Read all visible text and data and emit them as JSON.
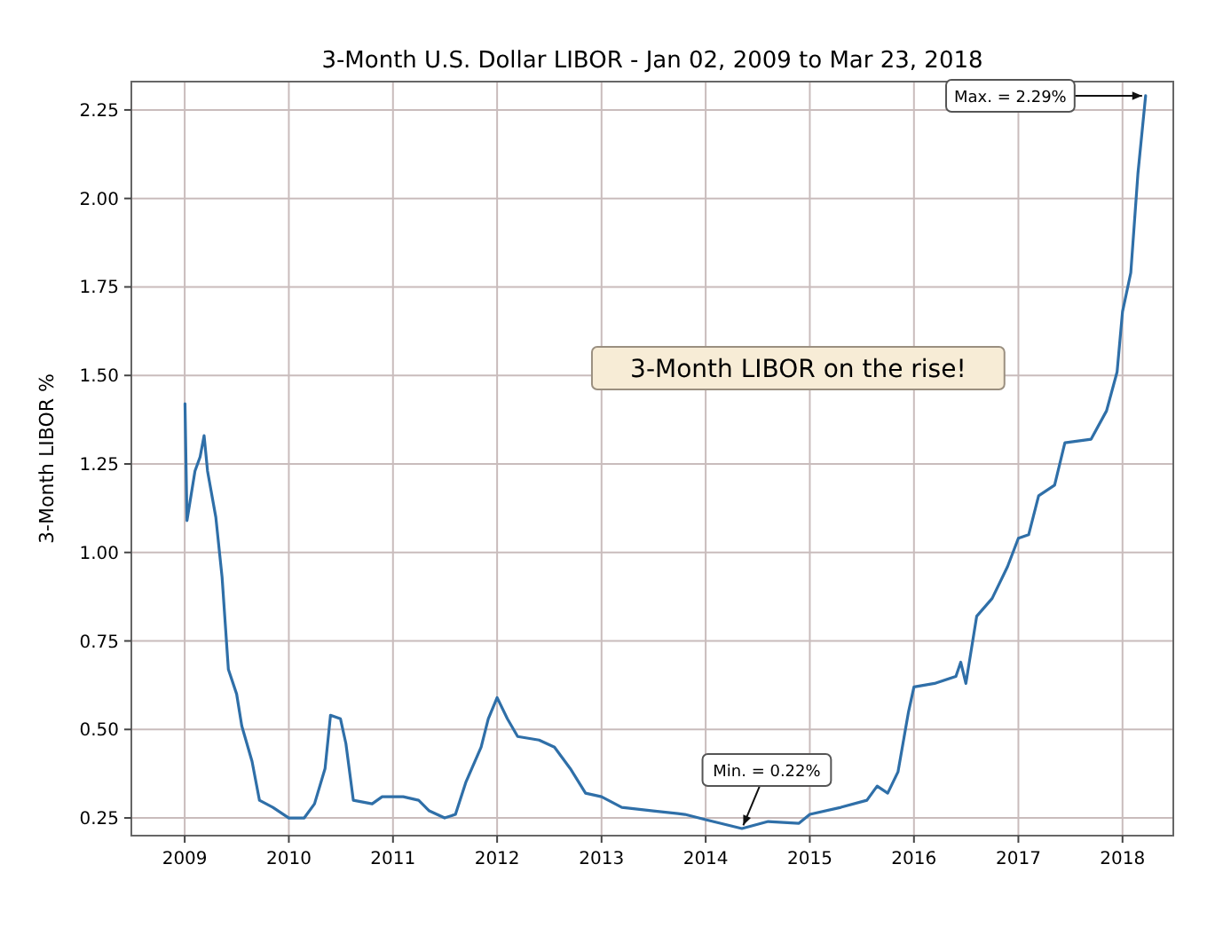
{
  "chart_data": {
    "type": "line",
    "title": "3-Month U.S. Dollar LIBOR - Jan 02, 2009 to Mar 23, 2018",
    "ylabel": "3-Month LIBOR %",
    "x": [
      "2009-01-02",
      "2009-01-09",
      "2009-02-06",
      "2009-02-24",
      "2009-03-10",
      "2009-03-22",
      "2009-04-20",
      "2009-05-12",
      "2009-06-03",
      "2009-07-02",
      "2009-07-20",
      "2009-08-25",
      "2009-09-20",
      "2009-11-06",
      "2010-01-01",
      "2010-02-24",
      "2010-04-01",
      "2010-05-08",
      "2010-05-27",
      "2010-07-01",
      "2010-07-20",
      "2010-08-15",
      "2010-10-20",
      "2010-11-24",
      "2011-02-06",
      "2011-04-01",
      "2011-05-08",
      "2011-07-01",
      "2011-08-08",
      "2011-09-13",
      "2011-11-06",
      "2011-12-01",
      "2012-01-01",
      "2012-02-06",
      "2012-03-13",
      "2012-05-27",
      "2012-07-20",
      "2012-09-13",
      "2012-11-06",
      "2013-01-01",
      "2013-03-13",
      "2013-07-01",
      "2013-10-20",
      "2014-01-01",
      "2014-05-08",
      "2014-08-08",
      "2014-11-24",
      "2015-01-01",
      "2015-04-20",
      "2015-07-20",
      "2015-08-25",
      "2015-10-01",
      "2015-11-06",
      "2015-12-13",
      "2016-01-01",
      "2016-03-13",
      "2016-05-27",
      "2016-06-13",
      "2016-07-01",
      "2016-08-08",
      "2016-10-01",
      "2016-11-24",
      "2017-01-01",
      "2017-02-06",
      "2017-03-13",
      "2017-05-08",
      "2017-06-13",
      "2017-09-13",
      "2017-11-06",
      "2017-12-13",
      "2018-01-01",
      "2018-01-30",
      "2018-02-24",
      "2018-03-23"
    ],
    "series": [
      {
        "color": "#2f6fa8",
        "values": [
          1.42,
          1.09,
          1.23,
          1.27,
          1.33,
          1.23,
          1.1,
          0.93,
          0.67,
          0.6,
          0.51,
          0.41,
          0.3,
          0.28,
          0.25,
          0.25,
          0.29,
          0.39,
          0.54,
          0.53,
          0.46,
          0.3,
          0.29,
          0.31,
          0.31,
          0.3,
          0.27,
          0.25,
          0.26,
          0.35,
          0.45,
          0.53,
          0.59,
          0.53,
          0.48,
          0.47,
          0.45,
          0.39,
          0.32,
          0.31,
          0.28,
          0.27,
          0.26,
          0.245,
          0.22,
          0.24,
          0.235,
          0.26,
          0.28,
          0.3,
          0.34,
          0.32,
          0.38,
          0.55,
          0.62,
          0.63,
          0.65,
          0.69,
          0.63,
          0.82,
          0.87,
          0.96,
          1.04,
          1.05,
          1.16,
          1.19,
          1.31,
          1.32,
          1.4,
          1.51,
          1.68,
          1.79,
          2.07,
          2.29
        ]
      }
    ],
    "xlim": [
      "2008-06-28",
      "2018-06-28"
    ],
    "xticks": [
      "2009",
      "2010",
      "2011",
      "2012",
      "2013",
      "2014",
      "2015",
      "2016",
      "2017",
      "2018"
    ],
    "ylim": [
      0.2,
      2.33
    ],
    "yticks": [
      {
        "value": 0.25,
        "label": "0.25"
      },
      {
        "value": 0.5,
        "label": "0.50"
      },
      {
        "value": 0.75,
        "label": "0.75"
      },
      {
        "value": 1,
        "label": "1.00"
      },
      {
        "value": 1.25,
        "label": "1.25"
      },
      {
        "value": 1.5,
        "label": "1.50"
      },
      {
        "value": 1.75,
        "label": "1.75"
      },
      {
        "value": 2,
        "label": "2.00"
      },
      {
        "value": 2.25,
        "label": "2.25"
      }
    ],
    "grid": true,
    "marker": "none",
    "line_style": "solid",
    "annotations": [
      {
        "text": "Max. = 2.29%",
        "x": "2018-03-23",
        "y": 2.29
      },
      {
        "text": "Min. = 0.22%",
        "x": "2014-05-08",
        "y": 0.22
      },
      "3-Month LIBOR on the rise!"
    ]
  }
}
